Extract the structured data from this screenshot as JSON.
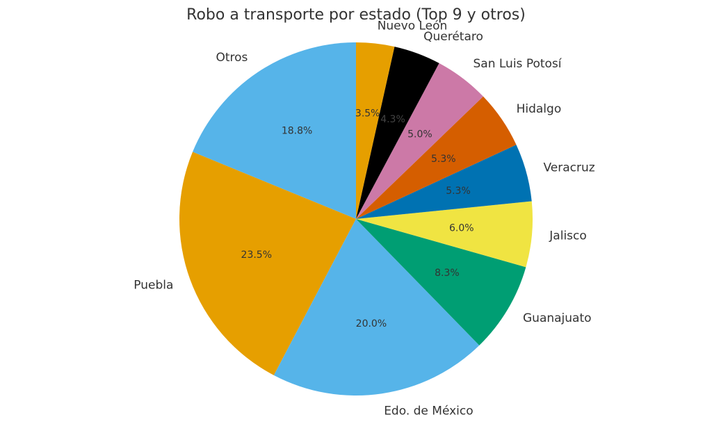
{
  "chart_data": {
    "type": "pie",
    "title": "Robo a transporte por estado (Top 9 y otros)",
    "start_angle_deg": 90,
    "direction": "counterclockwise",
    "slices": [
      {
        "label": "Otros",
        "pct_label": "18.8%",
        "value": 18.8,
        "color": "#56B4E9"
      },
      {
        "label": "Puebla",
        "pct_label": "23.5%",
        "value": 23.5,
        "color": "#E69F00"
      },
      {
        "label": "Edo. de México",
        "pct_label": "20.0%",
        "value": 20.0,
        "color": "#56B4E9"
      },
      {
        "label": "Guanajuato",
        "pct_label": "8.3%",
        "value": 8.3,
        "color": "#009E73"
      },
      {
        "label": "Jalisco",
        "pct_label": "6.0%",
        "value": 6.0,
        "color": "#F0E442"
      },
      {
        "label": "Veracruz",
        "pct_label": "5.3%",
        "value": 5.3,
        "color": "#0072B2"
      },
      {
        "label": "Hidalgo",
        "pct_label": "5.3%",
        "value": 5.3,
        "color": "#D55E00"
      },
      {
        "label": "San Luis Potosí",
        "pct_label": "5.0%",
        "value": 5.0,
        "color": "#CC79A7"
      },
      {
        "label": "Querétaro",
        "pct_label": "4.3%",
        "value": 4.3,
        "color": "#000000"
      },
      {
        "label": "Nuevo León",
        "pct_label": "3.5%",
        "value": 3.5,
        "color": "#E69F00"
      }
    ]
  }
}
